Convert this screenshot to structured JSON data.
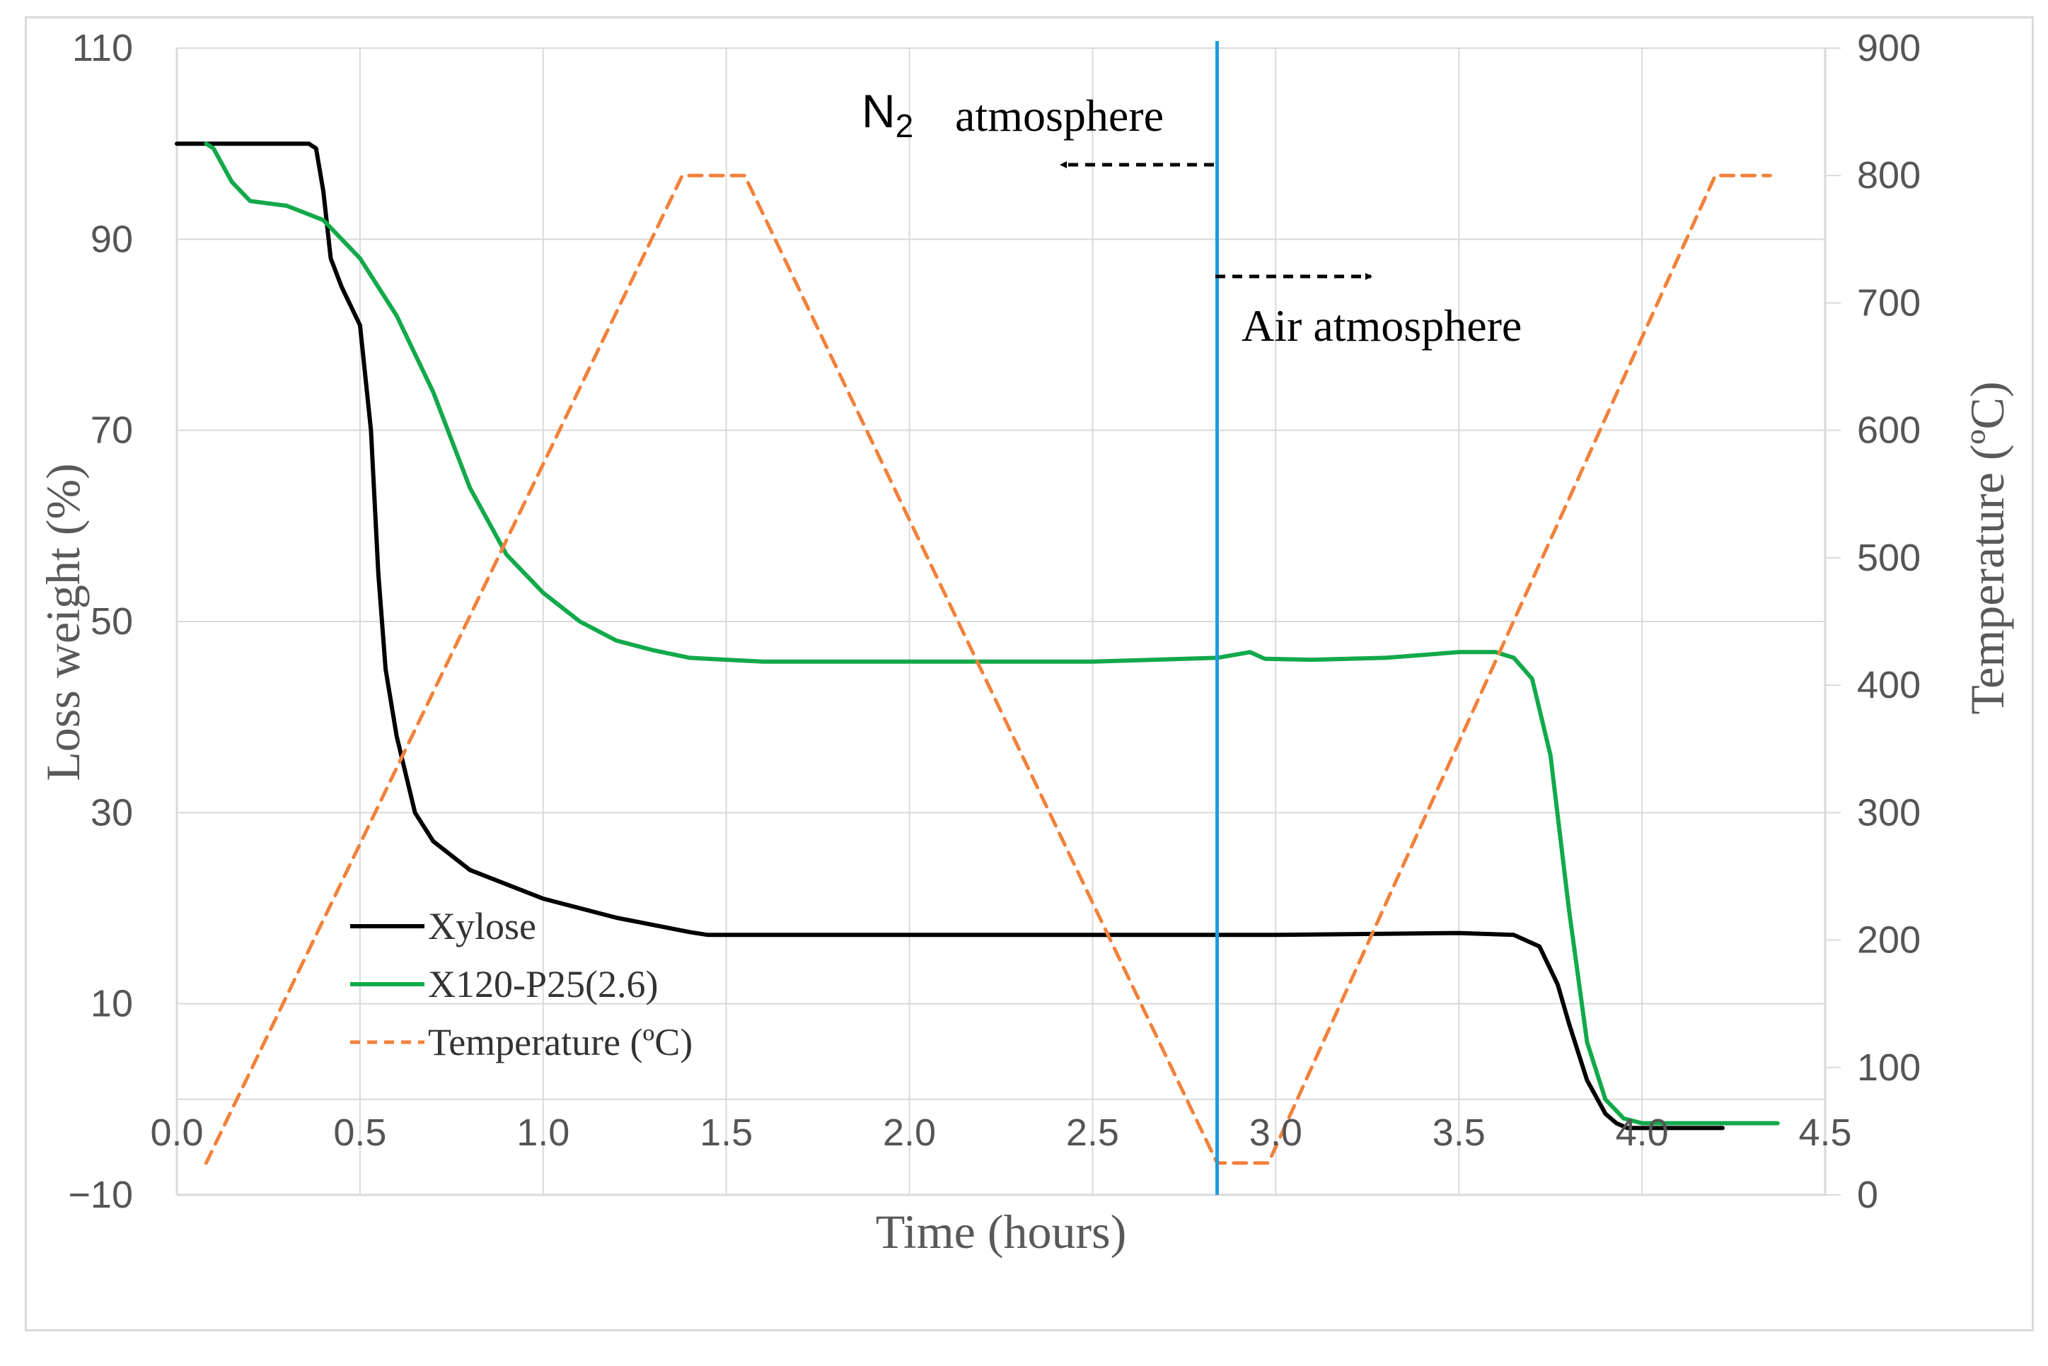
{
  "chart_data": {
    "type": "line",
    "xlabel": "Time (hours)",
    "ylabel": "Loss weight (%)",
    "y2label": "Temperature (ºC)",
    "xlim": [
      0,
      4.5
    ],
    "ylim": [
      -10,
      110
    ],
    "y2lim": [
      0,
      900
    ],
    "x_ticks": [
      "0.0",
      "0.5",
      "1.0",
      "1.5",
      "2.0",
      "2.5",
      "3.0",
      "3.5",
      "4.0",
      "4.5"
    ],
    "y_ticks": [
      "110",
      "90",
      "70",
      "50",
      "30",
      "10",
      "−10"
    ],
    "y2_ticks": [
      "900",
      "800",
      "700",
      "600",
      "500",
      "400",
      "300",
      "200",
      "100",
      "0"
    ],
    "grid": true,
    "legend_position": "bottom-left",
    "colors": {
      "xylose": "#000000",
      "x120": "#12a94a",
      "temperature": "#f2813a",
      "divider": "#1f9bde",
      "grid": "#d9d9d9"
    },
    "divider_x": 2.84,
    "series": [
      {
        "name": "Xylose",
        "axis": "left",
        "x": [
          0,
          0.2,
          0.36,
          0.38,
          0.4,
          0.42,
          0.45,
          0.5,
          0.53,
          0.55,
          0.57,
          0.6,
          0.65,
          0.7,
          0.8,
          1.0,
          1.2,
          1.4,
          1.45,
          1.6,
          2.0,
          2.5,
          2.84,
          3.0,
          3.5,
          3.65,
          3.72,
          3.77,
          3.8,
          3.85,
          3.9,
          3.93,
          3.96,
          4.0,
          4.22
        ],
        "y": [
          100,
          100,
          100,
          99.5,
          95,
          88,
          85,
          81,
          70,
          55,
          45,
          38,
          30,
          27,
          24,
          21,
          19,
          17.5,
          17.2,
          17.2,
          17.2,
          17.2,
          17.2,
          17.2,
          17.4,
          17.2,
          16,
          12,
          8,
          2,
          -1.5,
          -2.5,
          -3,
          -3,
          -3
        ]
      },
      {
        "name": "X120-P25(2.6)",
        "axis": "left",
        "x": [
          0.08,
          0.1,
          0.15,
          0.2,
          0.3,
          0.4,
          0.5,
          0.6,
          0.7,
          0.8,
          0.9,
          1.0,
          1.1,
          1.2,
          1.3,
          1.4,
          1.5,
          1.6,
          2.0,
          2.5,
          2.84,
          2.93,
          2.97,
          3.1,
          3.3,
          3.5,
          3.6,
          3.65,
          3.7,
          3.75,
          3.8,
          3.85,
          3.9,
          3.95,
          4.0,
          4.05,
          4.15,
          4.37
        ],
        "y": [
          100,
          99.5,
          96,
          94,
          93.5,
          92,
          88,
          82,
          74,
          64,
          57,
          53,
          50,
          48,
          47,
          46.2,
          46,
          45.8,
          45.8,
          45.8,
          46.2,
          46.8,
          46.1,
          46,
          46.2,
          46.8,
          46.8,
          46.2,
          44,
          36,
          20,
          6,
          0,
          -2,
          -2.5,
          -2.5,
          -2.5,
          -2.5
        ]
      },
      {
        "name": "Temperature (ºC)",
        "axis": "right",
        "x": [
          0.08,
          1.38,
          1.55,
          2.84,
          2.98,
          4.2,
          4.35
        ],
        "y": [
          25,
          800,
          800,
          25,
          25,
          800,
          800
        ]
      }
    ],
    "annotations": {
      "n2_main": "N",
      "n2_sub": "2",
      "n2_rest": "atmosphere",
      "air": "Air atmosphere"
    }
  }
}
